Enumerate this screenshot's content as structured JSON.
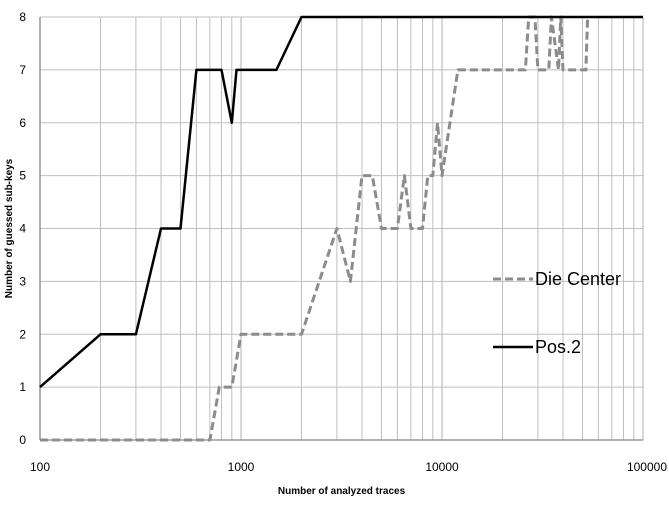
{
  "chart_data": {
    "type": "line",
    "title": "",
    "xlabel": "Number of analyzed traces",
    "ylabel": "Number of guessed sub-keys",
    "x_scale": "log",
    "xlim": [
      100,
      100000
    ],
    "ylim": [
      0,
      8
    ],
    "x_ticks": [
      "100",
      "1000",
      "10000",
      "100000"
    ],
    "y_ticks": [
      "0",
      "1",
      "2",
      "3",
      "4",
      "5",
      "6",
      "7",
      "8"
    ],
    "grid": true,
    "legend_placement": "right",
    "series": [
      {
        "name": "Die Center",
        "color": "#8c8c8c",
        "dash": "dashed",
        "x": [
          100,
          700,
          780,
          900,
          1000,
          1500,
          2000,
          3000,
          3500,
          4000,
          4500,
          5000,
          6000,
          6500,
          7000,
          8000,
          8500,
          9000,
          9500,
          10000,
          12000,
          15000,
          20000,
          26000,
          27000,
          29000,
          30000,
          34000,
          35000,
          38000,
          39000,
          40000,
          50000,
          52000,
          53000
        ],
        "y": [
          0,
          0,
          1,
          1,
          2,
          2,
          2,
          4,
          3,
          5,
          5,
          4,
          4,
          5,
          4,
          4,
          5,
          5,
          6,
          5,
          7,
          7,
          7,
          7,
          8,
          8,
          7,
          7,
          8,
          7,
          8,
          7,
          7,
          7,
          8
        ],
        "y_end": 8
      },
      {
        "name": "Pos.2",
        "color": "#000000",
        "dash": "solid",
        "x": [
          100,
          200,
          300,
          400,
          500,
          600,
          800,
          900,
          950,
          1000,
          1500,
          2000,
          100000
        ],
        "y": [
          1,
          2,
          2,
          4,
          4,
          7,
          7,
          6,
          7,
          7,
          7,
          8,
          8
        ]
      }
    ]
  }
}
